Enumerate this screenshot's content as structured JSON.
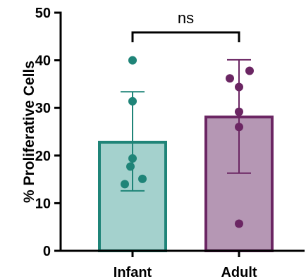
{
  "chart_data": {
    "type": "bar",
    "categories": [
      "Infant",
      "Adult"
    ],
    "series": [
      {
        "values": [
          22.8,
          28.1
        ],
        "error_lower": [
          12.6,
          16.3
        ],
        "error_upper": [
          33.4,
          40.1
        ],
        "points": [
          [
            40.0,
            31.4,
            19.4,
            17.7,
            14.0,
            15.1
          ],
          [
            37.8,
            36.2,
            34.4,
            29.2,
            26.0,
            5.7
          ]
        ]
      }
    ],
    "bar_colors": [
      "#a4d1cd",
      "#b597b4"
    ],
    "edge_colors": [
      "#1f8478",
      "#6b2663"
    ],
    "ylabel": "% Proliferative Cells",
    "ylim": [
      0,
      50
    ],
    "yticks": [
      0,
      10,
      20,
      30,
      40,
      50
    ],
    "significance": {
      "label": "ns",
      "between": [
        "Infant",
        "Adult"
      ]
    },
    "grid": false
  }
}
